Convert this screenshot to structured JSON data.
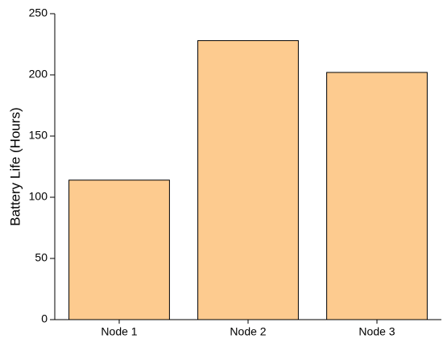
{
  "chart_data": {
    "type": "bar",
    "y_label": "Battery Life (Hours)",
    "categories": [
      "Node 1",
      "Node 2",
      "Node 3"
    ],
    "values": [
      114,
      228,
      202
    ],
    "color": "#fdcb8f",
    "ylim": [
      0,
      250
    ],
    "yticks": [
      0,
      50,
      100,
      150,
      200,
      250
    ],
    "grid": false
  }
}
